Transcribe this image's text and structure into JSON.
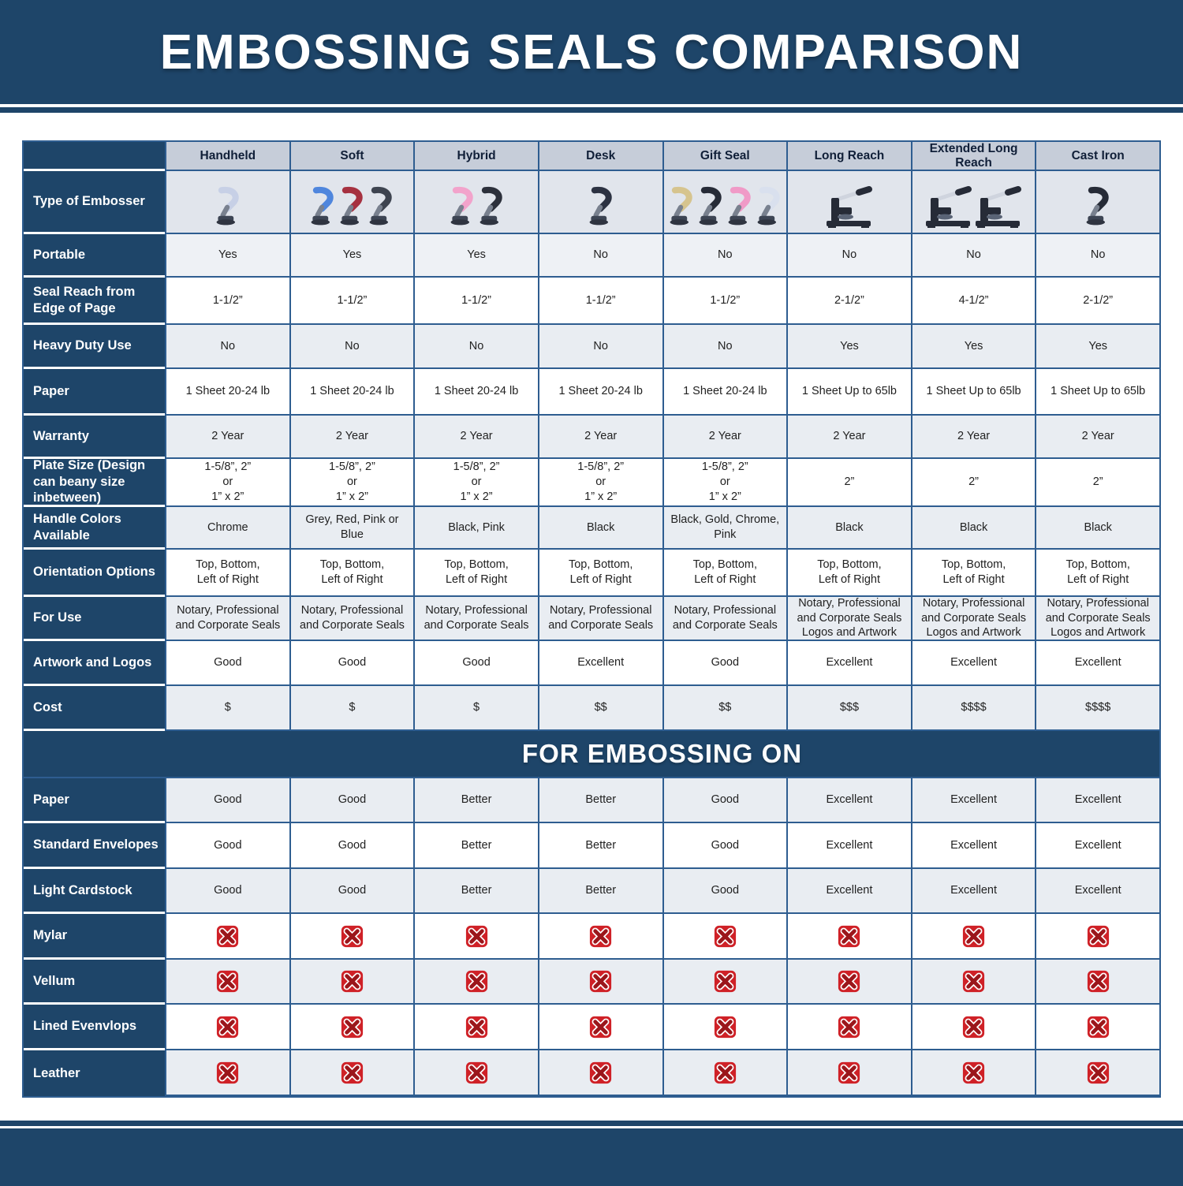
{
  "title": "EMBOSSING SEALS COMPARISON",
  "section_header": "FOR EMBOSSING ON",
  "colors": {
    "navy": "#1e4569",
    "column_header_bg": "#c6cdd9",
    "image_row_bg": "#e1e5ec",
    "row_light_gray": "#e9edf2",
    "row_portable_gray": "#eef1f5",
    "row_white": "#ffffff",
    "cell_border_blue": "#2e5d90",
    "x_square_red": "#cf2127",
    "x_stroke_dark_red": "#9b161b",
    "x_outline_white": "#ffffff"
  },
  "columns": [
    "Handheld",
    "Soft",
    "Hybrid",
    "Desk",
    "Gift Seal",
    "Long Reach",
    "Extended Long Reach",
    "Cast Iron"
  ],
  "embossers": [
    {
      "name": "handheld-embosser-image",
      "style": "lever",
      "colors": [
        "#c7d0e6"
      ]
    },
    {
      "name": "soft-embosser-image",
      "style": "lever",
      "colors": [
        "#4f86dd",
        "#a63140",
        "#3e4450"
      ]
    },
    {
      "name": "hybrid-embosser-image",
      "style": "lever",
      "colors": [
        "#f2a3cb",
        "#2c303b"
      ]
    },
    {
      "name": "desk-embosser-image",
      "style": "lever",
      "colors": [
        "#2c3242"
      ]
    },
    {
      "name": "gift-seal-embosser-image",
      "style": "lever",
      "colors": [
        "#d6c48e",
        "#262b37",
        "#f09ac7",
        "#d9e0ee"
      ]
    },
    {
      "name": "long-reach-embosser-image",
      "style": "press",
      "colors": [
        "#262b37"
      ]
    },
    {
      "name": "extended-long-reach-embosser-image",
      "style": "press",
      "colors": [
        "#262b37",
        "#262b37"
      ]
    },
    {
      "name": "cast-iron-embosser-image",
      "style": "lever",
      "colors": [
        "#262b37"
      ]
    }
  ],
  "spec_rows": [
    {
      "label": "Type of Embosser",
      "type": "images"
    },
    {
      "label": "Portable",
      "values": [
        "Yes",
        "Yes",
        "Yes",
        "No",
        "No",
        "No",
        "No",
        "No"
      ]
    },
    {
      "label": "Seal Reach from Edge of Page",
      "values": [
        "1-1/2”",
        "1-1/2”",
        "1-1/2”",
        "1-1/2”",
        "1-1/2”",
        "2-1/2”",
        "4-1/2”",
        "2-1/2”"
      ]
    },
    {
      "label": "Heavy Duty Use",
      "values": [
        "No",
        "No",
        "No",
        "No",
        "No",
        "Yes",
        "Yes",
        "Yes"
      ]
    },
    {
      "label": "Paper",
      "values": [
        "1 Sheet 20-24 lb",
        "1 Sheet 20-24 lb",
        "1 Sheet 20-24 lb",
        "1 Sheet 20-24 lb",
        "1 Sheet 20-24 lb",
        "1 Sheet Up to 65lb",
        "1 Sheet Up to 65lb",
        "1 Sheet Up to 65lb"
      ]
    },
    {
      "label": "Warranty",
      "values": [
        "2 Year",
        "2 Year",
        "2 Year",
        "2 Year",
        "2 Year",
        "2 Year",
        "2 Year",
        "2 Year"
      ]
    },
    {
      "label": "Plate Size (Design can beany size inbetween)",
      "values": [
        "1-5/8”, 2”\nor\n1” x 2”",
        "1-5/8”, 2”\nor\n1” x 2”",
        "1-5/8”, 2”\nor\n1” x 2”",
        "1-5/8”, 2”\nor\n1” x 2”",
        "1-5/8”, 2”\nor\n1” x 2”",
        "2”",
        "2”",
        "2”"
      ]
    },
    {
      "label": "Handle Colors Available",
      "values": [
        "Chrome",
        "Grey, Red, Pink or Blue",
        "Black, Pink",
        "Black",
        "Black, Gold, Chrome, Pink",
        "Black",
        "Black",
        "Black"
      ]
    },
    {
      "label": "Orientation Options",
      "values": [
        "Top, Bottom,\nLeft of Right",
        "Top, Bottom,\nLeft of Right",
        "Top, Bottom,\nLeft of Right",
        "Top, Bottom,\nLeft of Right",
        "Top, Bottom,\nLeft of Right",
        "Top, Bottom,\nLeft of Right",
        "Top, Bottom,\nLeft of Right",
        "Top, Bottom,\nLeft of Right"
      ]
    },
    {
      "label": "For Use",
      "values": [
        "Notary, Professional\nand Corporate Seals",
        "Notary, Professional\nand Corporate Seals",
        "Notary, Professional\nand Corporate Seals",
        "Notary, Professional\nand Corporate Seals",
        "Notary, Professional\nand Corporate Seals",
        "Notary, Professional\nand Corporate Seals\nLogos and Artwork",
        "Notary, Professional\nand Corporate Seals\nLogos and Artwork",
        "Notary, Professional\nand Corporate Seals\nLogos and Artwork"
      ]
    },
    {
      "label": "Artwork and Logos",
      "values": [
        "Good",
        "Good",
        "Good",
        "Excellent",
        "Good",
        "Excellent",
        "Excellent",
        "Excellent"
      ]
    },
    {
      "label": "Cost",
      "values": [
        "$",
        "$",
        "$",
        "$$",
        "$$",
        "$$$",
        "$$$$",
        "$$$$"
      ]
    }
  ],
  "embossing_rows": [
    {
      "label": "Paper",
      "type": "text",
      "values": [
        "Good",
        "Good",
        "Better",
        "Better",
        "Good",
        "Excellent",
        "Excellent",
        "Excellent"
      ]
    },
    {
      "label": "Standard Envelopes",
      "type": "text",
      "values": [
        "Good",
        "Good",
        "Better",
        "Better",
        "Good",
        "Excellent",
        "Excellent",
        "Excellent"
      ]
    },
    {
      "label": "Light Cardstock",
      "type": "text",
      "values": [
        "Good",
        "Good",
        "Better",
        "Better",
        "Good",
        "Excellent",
        "Excellent",
        "Excellent"
      ]
    },
    {
      "label": "Mylar",
      "type": "x"
    },
    {
      "label": "Vellum",
      "type": "x"
    },
    {
      "label": "Lined Evenvlops",
      "type": "x"
    },
    {
      "label": "Leather",
      "type": "x"
    }
  ]
}
